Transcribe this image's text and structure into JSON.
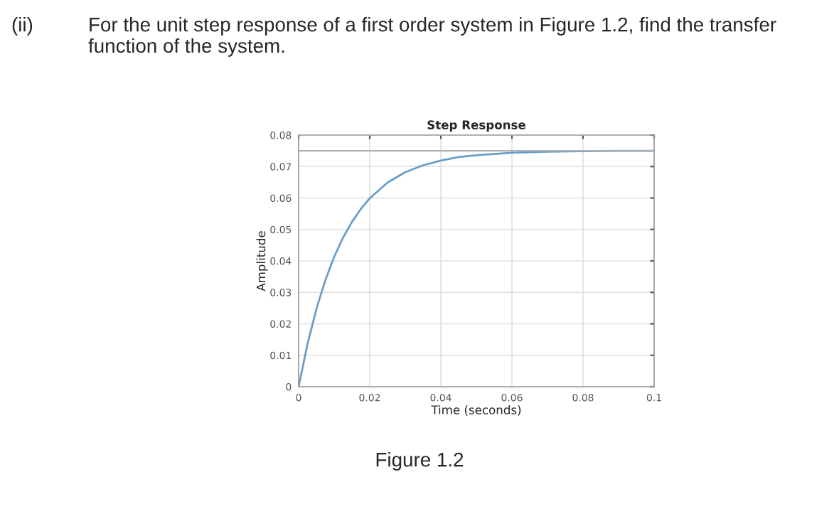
{
  "chart_data": {
    "type": "line",
    "title": "Step Response",
    "xlabel": "Time (seconds)",
    "ylabel": "Amplitude",
    "annotations": [
      "(ii)",
      "For the unit step response of a first order system in Figure 1.2, find the transfer function of the system.",
      "Figure 1.2"
    ],
    "x": [
      0,
      0.0025,
      0.005,
      0.0075,
      0.01,
      0.0125,
      0.015,
      0.0175,
      0.02,
      0.025,
      0.03,
      0.035,
      0.04,
      0.045,
      0.05,
      0.06,
      0.07,
      0.08,
      0.09,
      0.1
    ],
    "series": [
      {
        "color": "#6a9ec9",
        "values": [
          0,
          0.0136,
          0.0247,
          0.0338,
          0.0413,
          0.0474,
          0.0524,
          0.0565,
          0.0599,
          0.0649,
          0.0682,
          0.0704,
          0.0719,
          0.073,
          0.0736,
          0.0744,
          0.0747,
          0.0749,
          0.075,
          0.075
        ]
      }
    ],
    "ref_lines": [
      {
        "axis": "y",
        "value": 0.075,
        "color": "#b0b0b0"
      }
    ],
    "xlim": [
      0,
      0.1
    ],
    "ylim": [
      0,
      0.08
    ],
    "xticks": [
      0,
      0.02,
      0.04,
      0.06,
      0.08,
      0.1
    ],
    "yticks": [
      0,
      0.01,
      0.02,
      0.03,
      0.04,
      0.05,
      0.06,
      0.07,
      0.08
    ],
    "grid": true,
    "marker": "none",
    "line_style": "solid"
  }
}
